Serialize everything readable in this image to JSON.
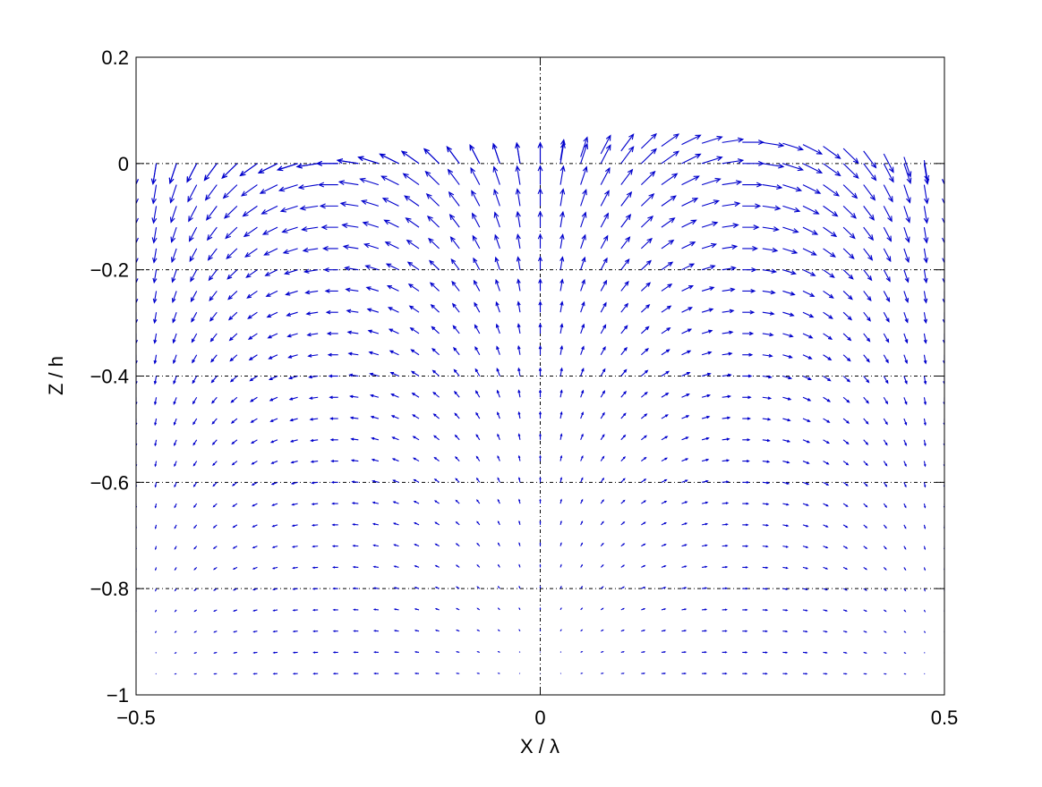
{
  "chart_data": {
    "type": "quiver",
    "title": "",
    "xlabel": "X / λ",
    "ylabel": "Z / h",
    "xlim": [
      -0.5,
      0.5
    ],
    "ylim": [
      -1,
      0.2
    ],
    "xticks": [
      -0.5,
      0,
      0.5
    ],
    "xtick_labels": [
      "−0.5",
      "0",
      "0.5"
    ],
    "yticks": [
      -1,
      -0.8,
      -0.6,
      -0.4,
      -0.2,
      0,
      0.2
    ],
    "ytick_labels": [
      "−1",
      "−0.8",
      "−0.6",
      "−0.4",
      "−0.2",
      "0",
      "0.2"
    ],
    "grid": {
      "vertical_at_x": [
        0
      ],
      "horizontal_at_y": [
        -0.8,
        -0.6,
        -0.4,
        -0.2,
        0
      ],
      "style": "dash-dot"
    },
    "arrow_color": "#0000cc",
    "field": {
      "description": "velocity vectors of a progressive wave",
      "x_start": -0.5,
      "x_step": 0.025,
      "x_count": 41,
      "z_start": -0.96,
      "z_step": 0.04,
      "z_count": 25,
      "free_surface_amplitude": 0.04,
      "wavenumber_depth": 2.3,
      "free_surface_crest_x": 0.25
    }
  }
}
